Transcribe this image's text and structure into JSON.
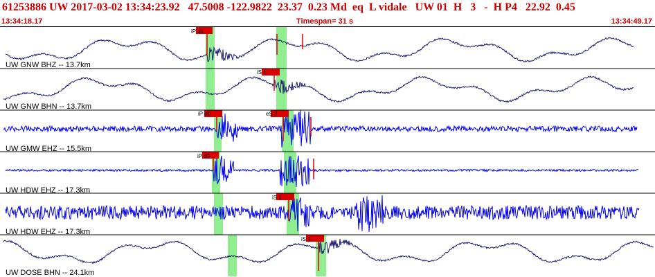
{
  "header": {
    "title": "61253886 UW 2017-03-02 13:34:23.92   47.5008 -122.9822  23.37  0.23 Md  eq  L vidale   UW 01  H   3   -  H P4   22.92  0.45",
    "time_start": "13:34:18.17",
    "timespan": "Timespan=  31 s",
    "time_end": "13:34:49.17"
  },
  "colors": {
    "title_text": "#cc0000",
    "trace_dark": "#1a1a6e",
    "trace_blue": "#0000ee",
    "pick_red": "#dd0000",
    "window_green": "#90ee90",
    "separator": "#000000"
  },
  "traces": [
    {
      "label": "UW GNW BHZ -- 13.7km",
      "style": "smooth",
      "picks": [
        {
          "label": "iP d1"
        }
      ]
    },
    {
      "label": "UW GNW BHN -- 13.7km",
      "style": "smooth",
      "picks": [
        {
          "label": "iS 1"
        }
      ]
    },
    {
      "label": "UW GMW EHZ -- 15.5km",
      "style": "noise",
      "picks": [
        {
          "label": "iP d0"
        },
        {
          "label": "eS 2"
        }
      ]
    },
    {
      "label": "UW HDW EHZ -- 17.3km",
      "style": "noise-small",
      "picks": [
        {
          "label": "iP d0"
        }
      ]
    },
    {
      "label": "UW HDW EHZ -- 17.3km",
      "style": "noise-large",
      "picks": [
        {
          "label": "iS 1"
        }
      ]
    },
    {
      "label": "UW DOSE BHN -- 24.1km",
      "style": "smooth",
      "picks": [
        {
          "label": "iS 1"
        }
      ]
    }
  ]
}
